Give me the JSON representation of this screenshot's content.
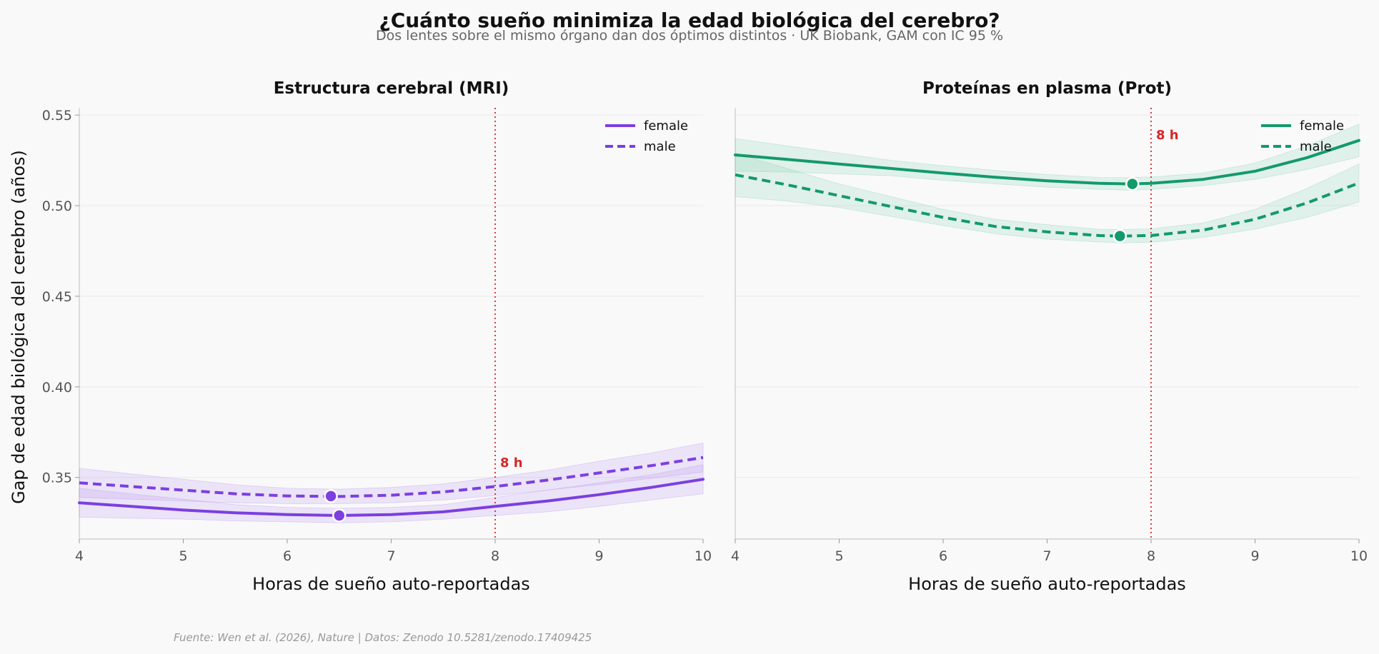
{
  "title": "¿Cuánto sueño minimiza la edad biológica del cerebro?",
  "subtitle": "Dos lentes sobre el mismo órgano dan dos óptimos distintos · UK Biobank, GAM con IC 95 %",
  "ylabel": "Gap de edad biológica del cerebro (años)",
  "source": "Fuente: Wen et al. (2026), Nature | Datos: Zenodo 10.5281/zenodo.17409425",
  "chart_data": [
    {
      "type": "line",
      "title": "Estructura cerebral (MRI)",
      "xlabel": "Horas de sueño auto-reportadas",
      "ylabel": "Gap de edad biológica del cerebro (años)",
      "xlim": [
        4,
        10
      ],
      "ylim": [
        0.316,
        0.554
      ],
      "xticks": [
        4,
        5,
        6,
        7,
        8,
        9,
        10
      ],
      "yticks": [
        0.35,
        0.4,
        0.45,
        0.5,
        0.55
      ],
      "color": "#7c3fe0",
      "band_color": "#b48cf0",
      "grid": true,
      "legend_position": "top-right",
      "reference_line": {
        "x": 8,
        "label": "8 h",
        "color": "#d62728"
      },
      "series": [
        {
          "name": "female",
          "style": "solid",
          "x": [
            4,
            4.5,
            5,
            5.5,
            6,
            6.5,
            7,
            7.5,
            8,
            8.5,
            9,
            9.5,
            10
          ],
          "y": [
            0.336,
            0.334,
            0.332,
            0.3305,
            0.3295,
            0.329,
            0.3295,
            0.331,
            0.334,
            0.337,
            0.3405,
            0.3445,
            0.349
          ],
          "ci_lower": [
            0.328,
            0.3275,
            0.327,
            0.326,
            0.3255,
            0.325,
            0.3255,
            0.327,
            0.329,
            0.331,
            0.334,
            0.3375,
            0.341
          ],
          "ci_upper": [
            0.344,
            0.341,
            0.338,
            0.335,
            0.3335,
            0.333,
            0.3335,
            0.335,
            0.339,
            0.343,
            0.347,
            0.3515,
            0.357
          ],
          "minimum": {
            "x": 6.5,
            "y": 0.329
          }
        },
        {
          "name": "male",
          "style": "dashed",
          "x": [
            4,
            4.5,
            5,
            5.5,
            6,
            6.5,
            7,
            7.5,
            8,
            8.5,
            9,
            9.5,
            10
          ],
          "y": [
            0.347,
            0.345,
            0.343,
            0.341,
            0.3398,
            0.3395,
            0.3402,
            0.342,
            0.345,
            0.3485,
            0.3525,
            0.3565,
            0.361
          ],
          "ci_lower": [
            0.339,
            0.338,
            0.337,
            0.336,
            0.3355,
            0.3355,
            0.336,
            0.3375,
            0.34,
            0.343,
            0.346,
            0.3495,
            0.353
          ],
          "ci_upper": [
            0.355,
            0.352,
            0.349,
            0.346,
            0.344,
            0.3435,
            0.3445,
            0.3465,
            0.35,
            0.354,
            0.359,
            0.3635,
            0.369
          ],
          "minimum": {
            "x": 6.42,
            "y": 0.3397
          }
        }
      ]
    },
    {
      "type": "line",
      "title": "Proteínas en plasma (Prot)",
      "xlabel": "Horas de sueño auto-reportadas",
      "xlim": [
        4,
        10
      ],
      "ylim": [
        0.316,
        0.554
      ],
      "xticks": [
        4,
        5,
        6,
        7,
        8,
        9,
        10
      ],
      "color": "#139a6a",
      "band_color": "#7fceb0",
      "grid": true,
      "legend_position": "top-right",
      "reference_line": {
        "x": 8,
        "label": "8 h",
        "color": "#d62728"
      },
      "series": [
        {
          "name": "female",
          "style": "solid",
          "x": [
            4,
            4.5,
            5,
            5.5,
            6,
            6.5,
            7,
            7.5,
            7.8,
            8,
            8.5,
            9,
            9.5,
            10
          ],
          "y": [
            0.528,
            0.5255,
            0.523,
            0.5205,
            0.518,
            0.5157,
            0.5137,
            0.5123,
            0.512,
            0.5123,
            0.5145,
            0.519,
            0.5265,
            0.536
          ],
          "ci_lower": [
            0.519,
            0.5185,
            0.5175,
            0.5165,
            0.514,
            0.512,
            0.5102,
            0.509,
            0.5085,
            0.509,
            0.511,
            0.5145,
            0.52,
            0.527
          ],
          "ci_upper": [
            0.537,
            0.533,
            0.529,
            0.525,
            0.522,
            0.5195,
            0.5172,
            0.5156,
            0.5155,
            0.5158,
            0.518,
            0.5235,
            0.533,
            0.545
          ],
          "minimum": {
            "x": 7.82,
            "y": 0.512
          }
        },
        {
          "name": "male",
          "style": "dashed",
          "x": [
            4,
            4.5,
            5,
            5.5,
            6,
            6.5,
            7,
            7.5,
            7.7,
            8,
            8.5,
            9,
            9.5,
            10
          ],
          "y": [
            0.517,
            0.5115,
            0.5055,
            0.4995,
            0.4935,
            0.4885,
            0.4855,
            0.4835,
            0.4832,
            0.4835,
            0.4865,
            0.4925,
            0.5015,
            0.5125
          ],
          "ci_lower": [
            0.505,
            0.5025,
            0.499,
            0.494,
            0.489,
            0.4845,
            0.4815,
            0.48,
            0.4795,
            0.4798,
            0.4825,
            0.487,
            0.4935,
            0.502
          ],
          "ci_upper": [
            0.529,
            0.5205,
            0.512,
            0.505,
            0.498,
            0.4925,
            0.4895,
            0.487,
            0.4868,
            0.4872,
            0.4905,
            0.498,
            0.5095,
            0.523
          ],
          "minimum": {
            "x": 7.7,
            "y": 0.4832
          }
        }
      ]
    }
  ]
}
